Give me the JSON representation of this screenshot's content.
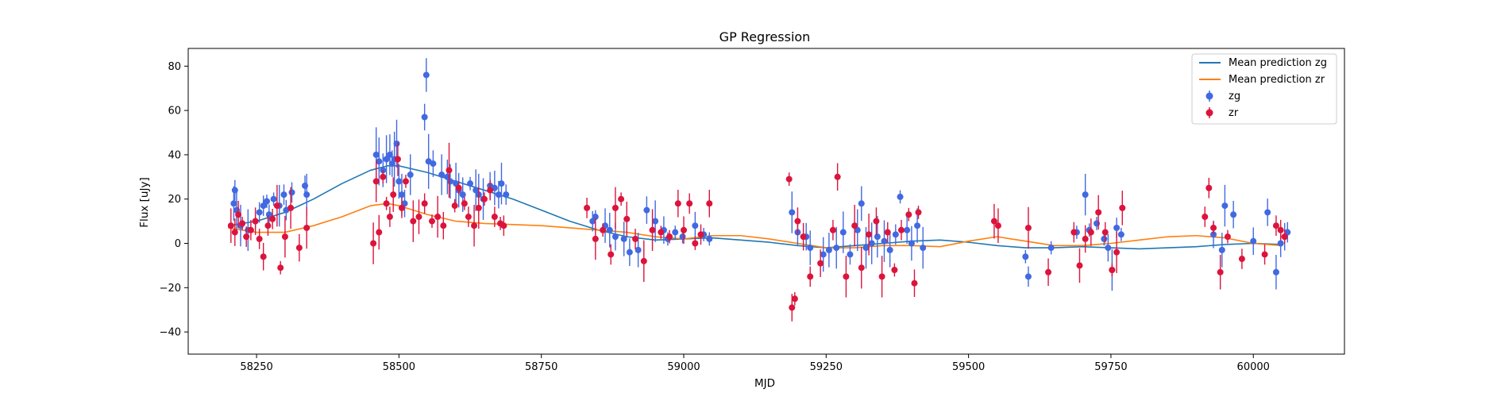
{
  "chart_data": {
    "type": "scatter",
    "title": "GP Regression",
    "xlabel": "MJD",
    "ylabel": "Flux [uJy]",
    "xlim": [
      58130,
      60160
    ],
    "ylim": [
      -50,
      88
    ],
    "xticks": [
      58250,
      58500,
      58750,
      59000,
      59250,
      59500,
      59750,
      60000
    ],
    "yticks": [
      -40,
      -20,
      0,
      20,
      40,
      60,
      80
    ],
    "grid": false,
    "legend_position": "top-right",
    "series": [
      {
        "name": "Mean prediction zg",
        "kind": "line",
        "color": "#1f77b4",
        "x": [
          58200,
          58250,
          58300,
          58350,
          58400,
          58450,
          58480,
          58500,
          58550,
          58600,
          58650,
          58700,
          58750,
          58800,
          58850,
          58900,
          58950,
          59000,
          59050,
          59100,
          59150,
          59200,
          59250,
          59300,
          59350,
          59400,
          59450,
          59500,
          59550,
          59600,
          59650,
          59700,
          59750,
          59800,
          59850,
          59900,
          59950,
          60000,
          60050
        ],
        "y": [
          8,
          10,
          14,
          20,
          27,
          33,
          35,
          35,
          32,
          28,
          24,
          20,
          15,
          10,
          6,
          3,
          1.5,
          2,
          2.5,
          1.5,
          0.5,
          -1,
          -2,
          -1,
          0,
          1,
          1.5,
          0.5,
          -1,
          -2,
          -2,
          -1.5,
          -2,
          -2.5,
          -2,
          -1.5,
          -0.5,
          0,
          -0.5
        ]
      },
      {
        "name": "Mean prediction zr",
        "kind": "line",
        "color": "#ff7f0e",
        "x": [
          58200,
          58250,
          58300,
          58350,
          58400,
          58450,
          58480,
          58500,
          58550,
          58600,
          58650,
          58700,
          58750,
          58800,
          58850,
          58900,
          58950,
          59000,
          59050,
          59100,
          59150,
          59200,
          59250,
          59300,
          59350,
          59400,
          59450,
          59500,
          59550,
          59600,
          59650,
          59700,
          59750,
          59800,
          59850,
          59900,
          59950,
          60000,
          60050
        ],
        "y": [
          7,
          5,
          5,
          8,
          12,
          17,
          18,
          17,
          13,
          10,
          9,
          8.5,
          8,
          7,
          6,
          5,
          3,
          2,
          3.5,
          3.5,
          2,
          0,
          -2,
          -2,
          -1,
          -1,
          -1.5,
          1,
          3,
          1,
          -1,
          -1,
          0,
          1.5,
          3,
          3.5,
          2.5,
          0,
          -1
        ]
      },
      {
        "name": "zg",
        "kind": "errorbar",
        "color": "#4169e1",
        "x": [
          58210,
          58212,
          58215,
          58222,
          58235,
          58248,
          58255,
          58262,
          58268,
          58272,
          58280,
          58290,
          58298,
          58302,
          58312,
          58335,
          58338,
          58460,
          58465,
          58472,
          58478,
          58484,
          58488,
          58492,
          58496,
          58500,
          58505,
          58510,
          58520,
          58545,
          58548,
          58552,
          58560,
          58575,
          58585,
          58590,
          58600,
          58605,
          58612,
          58625,
          58635,
          58640,
          58648,
          58660,
          58668,
          58675,
          58680,
          58688,
          58840,
          58845,
          58862,
          58870,
          58880,
          58895,
          58905,
          58920,
          58935,
          58950,
          58965,
          58972,
          58985,
          58998,
          59020,
          59035,
          59045,
          59190,
          59200,
          59215,
          59222,
          59245,
          59255,
          59268,
          59280,
          59292,
          59305,
          59312,
          59320,
          59330,
          59340,
          59352,
          59362,
          59372,
          59380,
          59392,
          59400,
          59410,
          59420,
          59600,
          59605,
          59645,
          59690,
          59705,
          59712,
          59725,
          59738,
          59745,
          59752,
          59760,
          59768,
          59930,
          59945,
          59950,
          59965,
          60000,
          60025,
          60040,
          60048,
          60055,
          60060
        ],
        "y": [
          18,
          24,
          15,
          8,
          6,
          10,
          14,
          17,
          19,
          13,
          20,
          17,
          22,
          15,
          23,
          26,
          22,
          40,
          37,
          33,
          38,
          40,
          36,
          38,
          45,
          28,
          22,
          18,
          31,
          57,
          76,
          37,
          36,
          31,
          30,
          28,
          27,
          24,
          22,
          27,
          24,
          22,
          20,
          26,
          25,
          22,
          27,
          22,
          10,
          12,
          8,
          6,
          3,
          2,
          -4,
          -3,
          15,
          10,
          6,
          2,
          5,
          3,
          8,
          4,
          2,
          14,
          5,
          3,
          -2,
          -5,
          -3,
          -2,
          5,
          -5,
          6,
          18,
          -2,
          0,
          3,
          1,
          -3,
          4,
          21,
          6,
          0,
          8,
          -2,
          -6,
          -15,
          -2,
          5,
          22,
          6,
          9,
          2,
          -2,
          -12,
          7,
          4,
          4,
          -3,
          17,
          13,
          1,
          14,
          -13,
          0,
          3,
          5
        ]
      },
      {
        "name": "zr",
        "kind": "errorbar",
        "color": "#dc143c",
        "x": [
          58205,
          58212,
          58218,
          58225,
          58232,
          58240,
          58248,
          58255,
          58262,
          58270,
          58278,
          58286,
          58292,
          58300,
          58310,
          58325,
          58338,
          58455,
          58460,
          58465,
          58472,
          58478,
          58484,
          58490,
          58498,
          58505,
          58512,
          58525,
          58535,
          58545,
          58558,
          58568,
          58578,
          58588,
          58598,
          58605,
          58615,
          58622,
          58632,
          58640,
          58650,
          58660,
          58668,
          58678,
          58684,
          58830,
          58845,
          58858,
          58872,
          58880,
          58890,
          58900,
          58915,
          58930,
          58945,
          58960,
          58975,
          58990,
          59000,
          59010,
          59020,
          59030,
          59045,
          59185,
          59190,
          59195,
          59200,
          59210,
          59222,
          59240,
          59262,
          59270,
          59285,
          59300,
          59312,
          59325,
          59338,
          59348,
          59358,
          59370,
          59382,
          59395,
          59405,
          59412,
          59545,
          59552,
          59605,
          59640,
          59685,
          59695,
          59705,
          59715,
          59728,
          59740,
          59752,
          59760,
          59770,
          59915,
          59922,
          59930,
          59942,
          59955,
          59980,
          60020,
          60040,
          60048,
          60055
        ],
        "y": [
          8,
          5,
          13,
          9,
          3,
          6,
          10,
          2,
          -6,
          8,
          11,
          17,
          -11,
          3,
          16,
          -2,
          7,
          0,
          28,
          5,
          30,
          18,
          12,
          22,
          38,
          16,
          28,
          10,
          12,
          18,
          10,
          12,
          8,
          33,
          17,
          25,
          18,
          12,
          8,
          16,
          20,
          24,
          12,
          9,
          8,
          16,
          2,
          6,
          -5,
          16,
          20,
          11,
          2,
          -8,
          6,
          5,
          3,
          18,
          6,
          18,
          0,
          4,
          18,
          29,
          -29,
          -25,
          10,
          3,
          -15,
          -9,
          6,
          30,
          -15,
          8,
          -11,
          4,
          10,
          -15,
          5,
          -12,
          6,
          13,
          -18,
          14,
          10,
          8,
          7,
          -13,
          5,
          -10,
          2,
          5,
          14,
          5,
          -12,
          -4,
          16,
          12,
          25,
          7,
          -13,
          3,
          -7,
          -5,
          8,
          6,
          3
        ]
      }
    ]
  }
}
